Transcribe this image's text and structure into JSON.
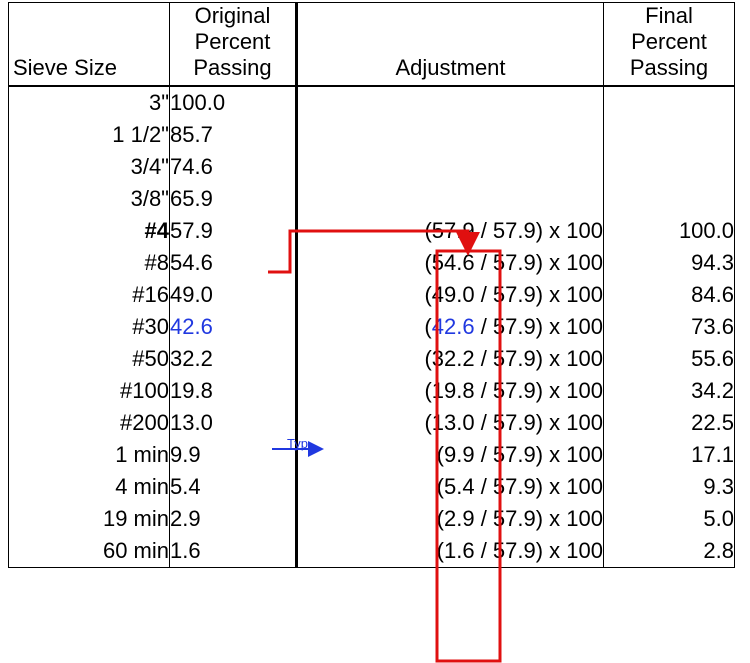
{
  "headers": {
    "sieve": "Sieve Size",
    "original": [
      "Original",
      "Percent",
      "Passing"
    ],
    "adjustment": "Adjustment",
    "final": [
      "Final",
      "Percent",
      "Passing"
    ]
  },
  "rows": [
    {
      "sieve": "3\"",
      "orig": "100.0",
      "adj": "",
      "final": ""
    },
    {
      "sieve": "1 1/2\"",
      "orig": "85.7",
      "adj": "",
      "final": ""
    },
    {
      "sieve": "3/4\"",
      "orig": "74.6",
      "adj": "",
      "final": ""
    },
    {
      "sieve": "3/8\"",
      "orig": "65.9",
      "adj": "",
      "final": ""
    },
    {
      "sieve": "#4",
      "orig": "57.9",
      "adj": "(57.9 / 57.9) x 100",
      "final": "100.0",
      "bold_sieve": true
    },
    {
      "sieve": "#8",
      "orig": "54.6",
      "adj": "(54.6 / 57.9) x 100",
      "final": "94.3"
    },
    {
      "sieve": "#16",
      "orig": "49.0",
      "adj": "(49.0 / 57.9) x 100",
      "final": "84.6"
    },
    {
      "sieve": "#30",
      "orig": "42.6",
      "adj_open": "(",
      "adj_num": "42.6",
      "adj_rest": " / 57.9) x 100",
      "final": "73.6",
      "highlight": true
    },
    {
      "sieve": "#50",
      "orig": "32.2",
      "adj": "(32.2 / 57.9) x 100",
      "final": "55.6"
    },
    {
      "sieve": "#100",
      "orig": "19.8",
      "adj": "(19.8 / 57.9) x 100",
      "final": "34.2"
    },
    {
      "sieve": "#200",
      "orig": "13.0",
      "adj": "(13.0 / 57.9) x 100",
      "final": "22.5"
    },
    {
      "sieve": "1 min",
      "orig": "9.9",
      "adj": "(9.9 / 57.9) x 100",
      "final": "17.1"
    },
    {
      "sieve": "4 min",
      "orig": "5.4",
      "adj": "(5.4 / 57.9) x 100",
      "final": "9.3"
    },
    {
      "sieve": "19 min",
      "orig": "2.9",
      "adj": "(2.9 / 57.9) x 100",
      "final": "5.0"
    },
    {
      "sieve": "60 min",
      "orig": "1.6",
      "adj": "(1.6 / 57.9) x 100",
      "final": "2.8"
    }
  ],
  "annotations": {
    "typ_label": "Typ.",
    "arrow_red_color": "#e01010",
    "arrow_blue_color": "#2038e0",
    "box_color": "#e01010"
  }
}
